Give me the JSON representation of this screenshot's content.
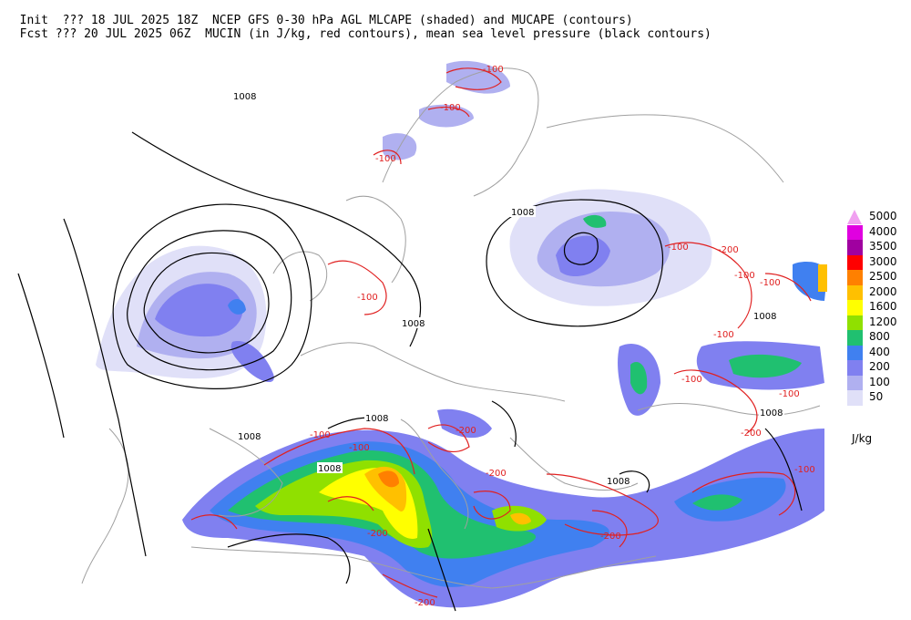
{
  "header": {
    "init": "Init  ??? 18 JUL 2025 18Z",
    "fcst": "Fcst ??? 20 JUL 2025 06Z",
    "title1": "NCEP GFS 0-30 hPa AGL MLCAPE (shaded) and MUCAPE (contours)",
    "title2": "MUCIN (in J/kg, red contours), mean sea level pressure (black contours)"
  },
  "legend": {
    "units": "J/kg",
    "items": [
      {
        "label": "5000",
        "color": "#f0a0f0"
      },
      {
        "label": "4000",
        "color": "#e000e0"
      },
      {
        "label": "3500",
        "color": "#a000a0"
      },
      {
        "label": "3000",
        "color": "#ff0000"
      },
      {
        "label": "2500",
        "color": "#ff8000"
      },
      {
        "label": "2000",
        "color": "#ffc000"
      },
      {
        "label": "1600",
        "color": "#ffff00"
      },
      {
        "label": "1200",
        "color": "#90e000"
      },
      {
        "label": "800",
        "color": "#20c070"
      },
      {
        "label": "400",
        "color": "#4080f0"
      },
      {
        "label": "200",
        "color": "#8080f0"
      },
      {
        "label": "100",
        "color": "#b0b0f0"
      },
      {
        "label": "50",
        "color": "#e0e0f8"
      }
    ]
  },
  "pressure_labels": [
    "1008",
    "1008",
    "1008",
    "1008",
    "1008",
    "1008",
    "1008",
    "1008",
    "1008"
  ],
  "cin_labels": [
    "-100",
    "-100",
    "-100",
    "-100",
    "-100",
    "-100",
    "-100",
    "-100",
    "-100",
    "-200",
    "-200",
    "-200",
    "-200",
    "-200",
    "-200",
    "-100",
    "-100",
    "-200",
    "-100",
    "-100"
  ]
}
